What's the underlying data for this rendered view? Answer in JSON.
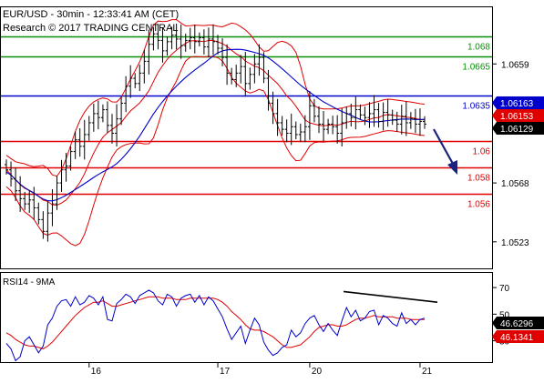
{
  "header": {
    "line1": "EUR/USD - 30min - 12:33:41 AM (CET)",
    "line2": "Research © 2017 TRADING CENTRAL"
  },
  "chart_data": [
    {
      "type": "candlestick",
      "symbol": "EUR/USD",
      "timeframe": "30min",
      "x_tick_labels": [
        "16",
        "17",
        "20",
        "21"
      ],
      "y_tick_labels": [
        "1.0659",
        "1.0568",
        "1.0523"
      ],
      "price_range": [
        1.0502,
        1.0703
      ],
      "levels": [
        {
          "label": "1.068",
          "value": 1.068,
          "color": "#0a8f0a"
        },
        {
          "label": "1.0665",
          "value": 1.0665,
          "color": "#0a8f0a"
        },
        {
          "label": "1.0635",
          "value": 1.0635,
          "color": "#0000cc"
        },
        {
          "label": "1.06",
          "value": 1.06,
          "color": "#e00000"
        },
        {
          "label": "1.058",
          "value": 1.058,
          "color": "#e00000"
        },
        {
          "label": "1.056",
          "value": 1.056,
          "color": "#e00000"
        }
      ],
      "price_tags": [
        {
          "label": "1.06163",
          "value": 1.06163,
          "bg": "#0000cc",
          "fg": "#ffffff"
        },
        {
          "label": "1.06153",
          "value": 1.06153,
          "bg": "#e00000",
          "fg": "#ffffff"
        },
        {
          "label": "1.06129",
          "value": 1.06129,
          "bg": "#000000",
          "fg": "#ffffff"
        }
      ],
      "close_series": [
        1.0578,
        1.0571,
        1.0562,
        1.0556,
        1.0552,
        1.0555,
        1.0549,
        1.054,
        1.0531,
        1.0545,
        1.0552,
        1.0568,
        1.0578,
        1.0581,
        1.0592,
        1.0601,
        1.0596,
        1.0605,
        1.0614,
        1.0621,
        1.0618,
        1.0624,
        1.0612,
        1.0606,
        1.0617,
        1.0629,
        1.0642,
        1.0648,
        1.0644,
        1.0652,
        1.0661,
        1.0674,
        1.0682,
        1.0677,
        1.0669,
        1.0676,
        1.0681,
        1.0678,
        1.0673,
        1.0677,
        1.0679,
        1.0676,
        1.0679,
        1.0672,
        1.0678,
        1.0676,
        1.0671,
        1.0664,
        1.0652,
        1.0647,
        1.0652,
        1.0657,
        1.0644,
        1.0651,
        1.0659,
        1.0664,
        1.0648,
        1.0629,
        1.0621,
        1.0614,
        1.0609,
        1.0606,
        1.0611,
        1.0605,
        1.0607,
        1.0611,
        1.0627,
        1.0619,
        1.0613,
        1.0609,
        1.0613,
        1.0611,
        1.0606,
        1.0614,
        1.0621,
        1.0618,
        1.0624,
        1.062,
        1.0618,
        1.0621,
        1.0624,
        1.0615,
        1.0622,
        1.062,
        1.0616,
        1.0613,
        1.0619,
        1.0614,
        1.0617,
        1.0613,
        1.0615,
        1.0613
      ],
      "rsi_series": [
        28,
        24,
        15,
        18,
        30,
        33,
        27,
        21,
        26,
        42,
        47,
        56,
        60,
        61,
        56,
        63,
        57,
        59,
        64,
        62,
        57,
        63,
        46,
        45,
        58,
        61,
        65,
        63,
        58,
        64,
        66,
        68,
        66,
        60,
        57,
        65,
        63,
        56,
        62,
        64,
        65,
        59,
        64,
        57,
        63,
        60,
        54,
        48,
        39,
        31,
        36,
        41,
        28,
        38,
        47,
        42,
        29,
        23,
        19,
        21,
        25,
        27,
        38,
        33,
        36,
        43,
        47,
        49,
        42,
        37,
        43,
        38,
        34,
        45,
        55,
        48,
        53,
        45,
        47,
        52,
        53,
        42,
        49,
        47,
        43,
        41,
        51,
        43,
        46,
        42,
        46,
        47
      ],
      "rsi_ma_series": [
        36,
        34,
        31,
        29,
        27,
        26,
        26,
        25,
        24,
        26,
        29,
        33,
        37,
        41,
        45,
        49,
        52,
        55,
        57,
        59,
        59,
        60,
        58,
        56,
        56,
        57,
        58,
        59,
        60,
        61,
        62,
        63,
        63,
        63,
        62,
        62,
        62,
        61,
        61,
        61,
        62,
        62,
        62,
        62,
        62,
        62,
        61,
        59,
        56,
        52,
        49,
        46,
        42,
        39,
        38,
        38,
        37,
        35,
        33,
        30,
        27,
        25,
        25,
        26,
        27,
        30,
        33,
        37,
        40,
        41,
        42,
        42,
        41,
        41,
        42,
        44,
        46,
        47,
        47,
        48,
        49,
        48,
        48,
        48,
        48,
        47,
        47,
        47,
        46,
        46,
        46,
        46
      ],
      "rsi_panel": {
        "title": "RSI14 - 9MA",
        "y_tick_labels": [
          "70",
          "50",
          "30"
        ],
        "y_range": [
          14,
          81
        ],
        "tags": [
          {
            "label": "46.6296",
            "value": 46.6296,
            "bg": "#000000",
            "fg": "#ffffff"
          },
          {
            "label": "46.1341",
            "value": 46.1341,
            "bg": "#e00000",
            "fg": "#ffffff"
          }
        ]
      },
      "colors": {
        "candle": "#000000",
        "bollinger": "#e00000",
        "moving_average": "#0000cc",
        "rsi_line": "#0000cc",
        "rsi_ma_line": "#e00000",
        "arrow": "#1a237e",
        "trendline": "#000000"
      }
    }
  ]
}
